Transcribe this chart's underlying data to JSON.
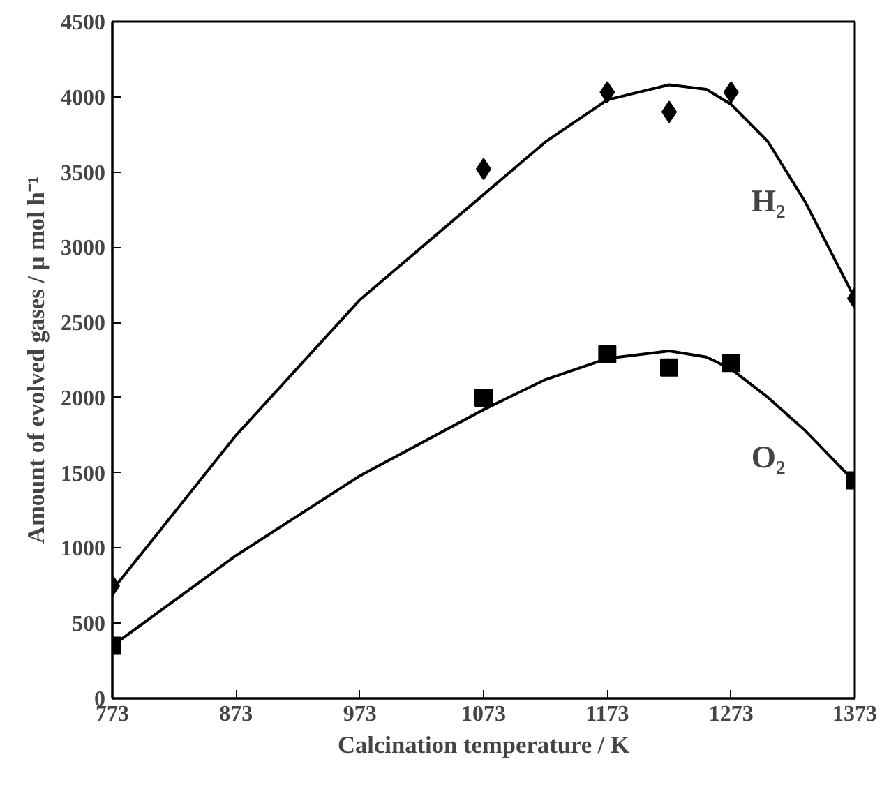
{
  "chart_data": {
    "type": "line",
    "xlabel": "Calcination temperature / K",
    "ylabel": "Amount of evolved gases / μ mol h⁻¹",
    "xlim": [
      773,
      1373
    ],
    "xticks": [
      773,
      873,
      973,
      1073,
      1173,
      1273,
      1373
    ],
    "ylim": [
      0,
      4500
    ],
    "yticks": [
      0,
      500,
      1000,
      1500,
      2000,
      2500,
      3000,
      3500,
      4000,
      4500
    ],
    "grid": false,
    "series": [
      {
        "type": "scatter",
        "marker": "diamond",
        "color": "#000000",
        "x": [
          773,
          1073,
          1173,
          1223,
          1273,
          1373
        ],
        "values": [
          750,
          3520,
          4030,
          3900,
          4030,
          2660
        ]
      },
      {
        "type": "scatter",
        "marker": "square",
        "color": "#000000",
        "x": [
          773,
          1073,
          1173,
          1223,
          1273,
          1373
        ],
        "values": [
          350,
          2000,
          2290,
          2200,
          2230,
          1450
        ]
      },
      {
        "name": "H₂",
        "marker": "none",
        "line_style": "solid",
        "color": "#000000",
        "x": [
          773,
          873,
          973,
          1073,
          1123,
          1173,
          1223,
          1253,
          1273,
          1303,
          1333,
          1373
        ],
        "values": [
          720,
          1750,
          2650,
          3350,
          3700,
          3980,
          4080,
          4050,
          3950,
          3700,
          3300,
          2660
        ]
      },
      {
        "name": "O₂",
        "marker": "none",
        "line_style": "solid",
        "color": "#000000",
        "x": [
          773,
          873,
          973,
          1073,
          1123,
          1173,
          1223,
          1253,
          1273,
          1303,
          1333,
          1373
        ],
        "values": [
          350,
          950,
          1480,
          1920,
          2120,
          2260,
          2310,
          2270,
          2190,
          2000,
          1780,
          1440
        ]
      }
    ]
  }
}
